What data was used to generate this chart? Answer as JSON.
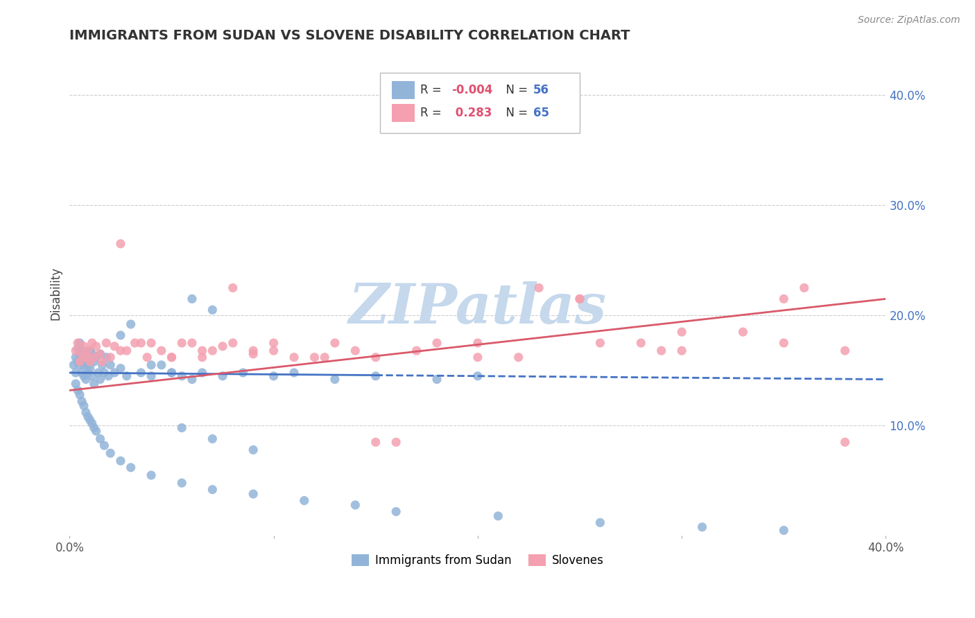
{
  "title": "IMMIGRANTS FROM SUDAN VS SLOVENE DISABILITY CORRELATION CHART",
  "source_text": "Source: ZipAtlas.com",
  "ylabel": "Disability",
  "xlim": [
    0.0,
    0.4
  ],
  "ylim": [
    0.0,
    0.44
  ],
  "legend_label1": "Immigrants from Sudan",
  "legend_label2": "Slovenes",
  "color_blue": "#92b4d9",
  "color_pink": "#f4a0b0",
  "line_color_blue": "#4472c4",
  "line_color_pink": "#d9596a",
  "watermark": "ZIPatlas",
  "watermark_color": "#c5d8ec",
  "background_color": "#ffffff",
  "grid_color": "#cccccc",
  "r_value_color": "#e05070",
  "n_value_color": "#4472c4",
  "blue_scatter_x": [
    0.002,
    0.003,
    0.003,
    0.004,
    0.004,
    0.005,
    0.005,
    0.005,
    0.006,
    0.006,
    0.007,
    0.007,
    0.007,
    0.008,
    0.008,
    0.009,
    0.009,
    0.01,
    0.01,
    0.011,
    0.011,
    0.012,
    0.012,
    0.013,
    0.014,
    0.015,
    0.015,
    0.016,
    0.017,
    0.018,
    0.019,
    0.02,
    0.022,
    0.025,
    0.028,
    0.035,
    0.04,
    0.05,
    0.055,
    0.065,
    0.075,
    0.085,
    0.1,
    0.11,
    0.13,
    0.15,
    0.18,
    0.2,
    0.06,
    0.07,
    0.03,
    0.025,
    0.045,
    0.055,
    0.07,
    0.09
  ],
  "blue_scatter_y": [
    0.155,
    0.148,
    0.162,
    0.17,
    0.158,
    0.175,
    0.155,
    0.165,
    0.148,
    0.168,
    0.155,
    0.165,
    0.145,
    0.16,
    0.142,
    0.155,
    0.148,
    0.168,
    0.152,
    0.165,
    0.145,
    0.158,
    0.138,
    0.162,
    0.148,
    0.165,
    0.142,
    0.155,
    0.148,
    0.162,
    0.145,
    0.155,
    0.148,
    0.152,
    0.145,
    0.148,
    0.145,
    0.148,
    0.145,
    0.148,
    0.145,
    0.148,
    0.145,
    0.148,
    0.142,
    0.145,
    0.142,
    0.145,
    0.215,
    0.205,
    0.192,
    0.182,
    0.155,
    0.098,
    0.088,
    0.078
  ],
  "blue_scatter_x2": [
    0.003,
    0.004,
    0.005,
    0.006,
    0.007,
    0.008,
    0.009,
    0.01,
    0.011,
    0.012,
    0.013,
    0.015,
    0.017,
    0.02,
    0.025,
    0.03,
    0.04,
    0.055,
    0.07,
    0.09,
    0.115,
    0.14,
    0.16,
    0.21,
    0.26,
    0.31,
    0.35,
    0.04,
    0.05,
    0.06
  ],
  "blue_scatter_y2": [
    0.138,
    0.132,
    0.128,
    0.122,
    0.118,
    0.112,
    0.108,
    0.105,
    0.102,
    0.098,
    0.095,
    0.088,
    0.082,
    0.075,
    0.068,
    0.062,
    0.055,
    0.048,
    0.042,
    0.038,
    0.032,
    0.028,
    0.022,
    0.018,
    0.012,
    0.008,
    0.005,
    0.155,
    0.148,
    0.142
  ],
  "pink_scatter_x": [
    0.003,
    0.004,
    0.005,
    0.006,
    0.007,
    0.008,
    0.009,
    0.01,
    0.011,
    0.012,
    0.013,
    0.015,
    0.016,
    0.018,
    0.02,
    0.022,
    0.025,
    0.028,
    0.032,
    0.038,
    0.045,
    0.055,
    0.065,
    0.075,
    0.09,
    0.1,
    0.12,
    0.14,
    0.16,
    0.18,
    0.22,
    0.25,
    0.28,
    0.3,
    0.35,
    0.38,
    0.04,
    0.05,
    0.06,
    0.07,
    0.08,
    0.09,
    0.11,
    0.13,
    0.15,
    0.17,
    0.2,
    0.23,
    0.26,
    0.29,
    0.33,
    0.36,
    0.025,
    0.035,
    0.05,
    0.065,
    0.08,
    0.1,
    0.125,
    0.15,
    0.2,
    0.25,
    0.3,
    0.35,
    0.38
  ],
  "pink_scatter_y": [
    0.168,
    0.175,
    0.158,
    0.165,
    0.172,
    0.162,
    0.168,
    0.158,
    0.175,
    0.162,
    0.172,
    0.165,
    0.158,
    0.175,
    0.162,
    0.172,
    0.265,
    0.168,
    0.175,
    0.162,
    0.168,
    0.175,
    0.162,
    0.172,
    0.165,
    0.175,
    0.162,
    0.168,
    0.085,
    0.175,
    0.162,
    0.215,
    0.175,
    0.168,
    0.175,
    0.168,
    0.175,
    0.162,
    0.175,
    0.168,
    0.225,
    0.168,
    0.162,
    0.175,
    0.162,
    0.168,
    0.162,
    0.225,
    0.175,
    0.168,
    0.185,
    0.225,
    0.168,
    0.175,
    0.162,
    0.168,
    0.175,
    0.168,
    0.162,
    0.085,
    0.175,
    0.215,
    0.185,
    0.215,
    0.085
  ],
  "blue_trend_x": [
    0.0,
    0.4
  ],
  "blue_trend_y": [
    0.148,
    0.142
  ],
  "pink_trend_x": [
    0.0,
    0.4
  ],
  "pink_trend_y": [
    0.132,
    0.215
  ]
}
